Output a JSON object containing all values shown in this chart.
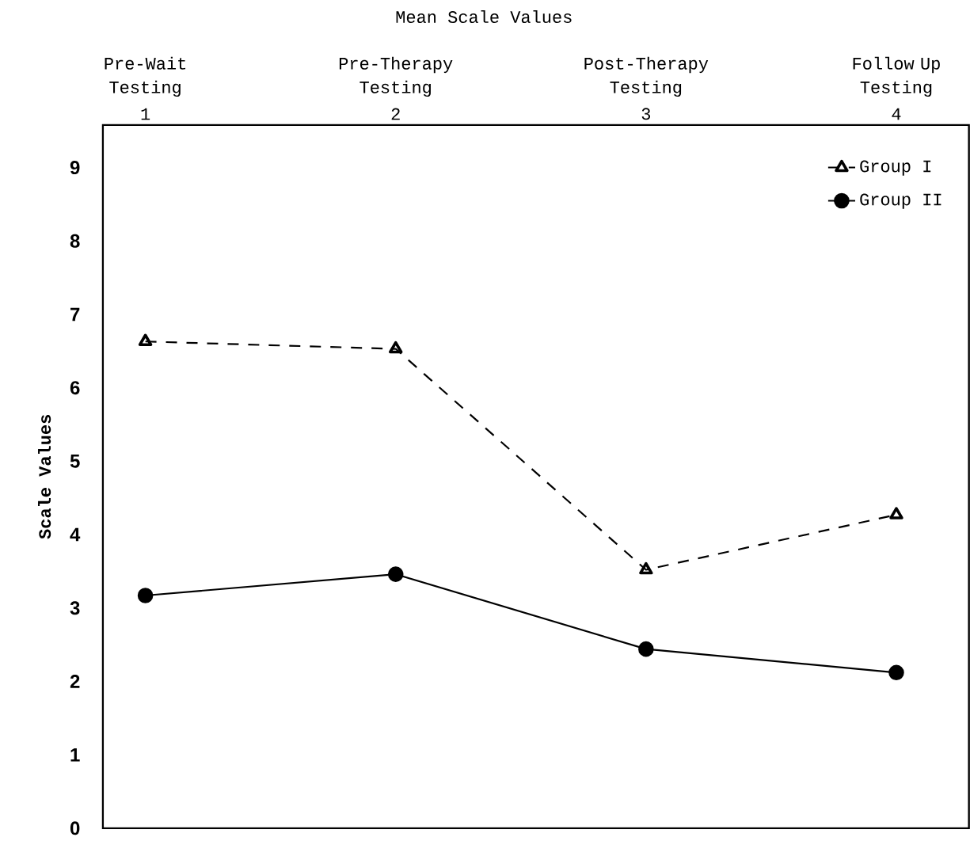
{
  "chart_data": {
    "type": "line",
    "title": "Mean Scale Values",
    "ylabel": "Scale Values",
    "x": [
      1,
      2,
      3,
      4
    ],
    "xlim": [
      0.83,
      4.29
    ],
    "xticks": [
      1,
      2,
      3,
      4
    ],
    "annotations": [
      "Pre-Wait Testing",
      "Pre-Therapy Testing",
      "Post-Therapy Testing",
      "Follow Up Testing"
    ],
    "ylim": [
      0,
      9.58
    ],
    "yticks": [
      0,
      1,
      2,
      3,
      4,
      5,
      6,
      7,
      8,
      9
    ],
    "legend": "top right",
    "grid": false,
    "series": [
      {
        "name": "Group I",
        "color": "#000000",
        "marker": "triangle",
        "line_style": "dashed",
        "values": [
          6.63,
          6.53,
          3.52,
          4.27
        ]
      },
      {
        "name": "Group II",
        "color": "#000000",
        "marker": "circle",
        "line_style": "solid",
        "values": [
          3.17,
          3.46,
          2.44,
          2.12
        ]
      }
    ]
  }
}
